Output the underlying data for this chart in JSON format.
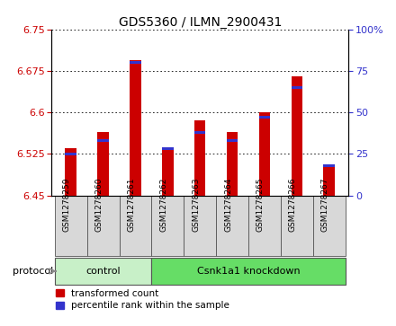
{
  "title": "GDS5360 / ILMN_2900431",
  "samples": [
    "GSM1278259",
    "GSM1278260",
    "GSM1278261",
    "GSM1278262",
    "GSM1278263",
    "GSM1278264",
    "GSM1278265",
    "GSM1278266",
    "GSM1278267"
  ],
  "red_values": [
    6.535,
    6.565,
    6.695,
    6.535,
    6.585,
    6.565,
    6.6,
    6.665,
    6.505
  ],
  "blue_values": [
    25,
    33,
    80,
    28,
    38,
    33,
    47,
    65,
    18
  ],
  "ymin": 6.45,
  "ymax": 6.75,
  "yticks": [
    6.45,
    6.525,
    6.6,
    6.675,
    6.75
  ],
  "ytick_labels": [
    "6.45",
    "6.525",
    "6.6",
    "6.675",
    "6.75"
  ],
  "y2min": 0,
  "y2max": 100,
  "y2ticks": [
    0,
    25,
    50,
    75,
    100
  ],
  "y2tick_labels": [
    "0",
    "25",
    "50",
    "75",
    "100%"
  ],
  "bar_bottom": 6.45,
  "control_label": "control",
  "knockdown_label": "Csnk1a1 knockdown",
  "protocol_label": "protocol",
  "n_control": 3,
  "legend_red": "transformed count",
  "legend_blue": "percentile rank within the sample",
  "red_color": "#cc0000",
  "blue_color": "#3333cc",
  "bar_width": 0.35,
  "label_bg_color": "#d8d8d8",
  "group_bg_control": "#c8f0c8",
  "group_bg_knockdown": "#66dd66"
}
